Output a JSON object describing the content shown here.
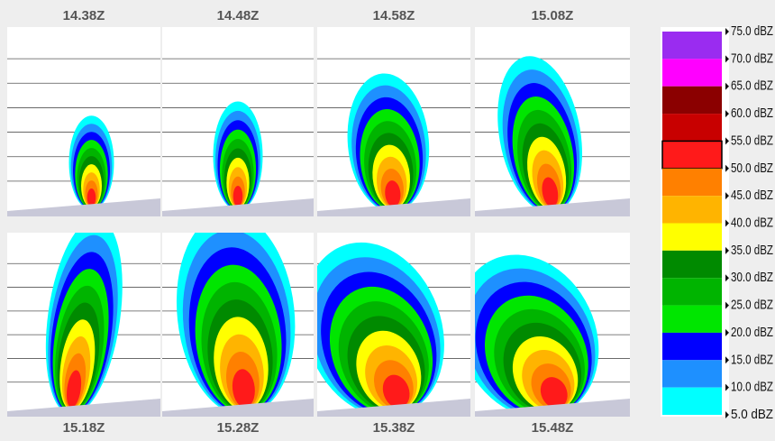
{
  "panels": [
    {
      "time": "14.38Z"
    },
    {
      "time": "14.48Z"
    },
    {
      "time": "14.58Z"
    },
    {
      "time": "15.08Z"
    },
    {
      "time": "15.18Z"
    },
    {
      "time": "15.28Z"
    },
    {
      "time": "15.38Z"
    },
    {
      "time": "15.48Z"
    }
  ],
  "legend": {
    "labels": [
      "75.0 dBZ",
      "70.0 dBZ",
      "65.0 dBZ",
      "60.0 dBZ",
      "55.0 dBZ",
      "50.0 dBZ",
      "45.0 dBZ",
      "40.0 dBZ",
      "35.0 dBZ",
      "30.0 dBZ",
      "25.0 dBZ",
      "20.0 dBZ",
      "15.0 dBZ",
      "10.0 dBZ",
      "5.0 dBZ"
    ],
    "colors": [
      "#9a2cf0",
      "#ff00ff",
      "#8b0000",
      "#c80000",
      "#ff1a1a",
      "#ff8000",
      "#ffb400",
      "#ffff00",
      "#008a00",
      "#00b400",
      "#00e600",
      "#0000ff",
      "#1e90ff",
      "#00ffff"
    ]
  }
}
